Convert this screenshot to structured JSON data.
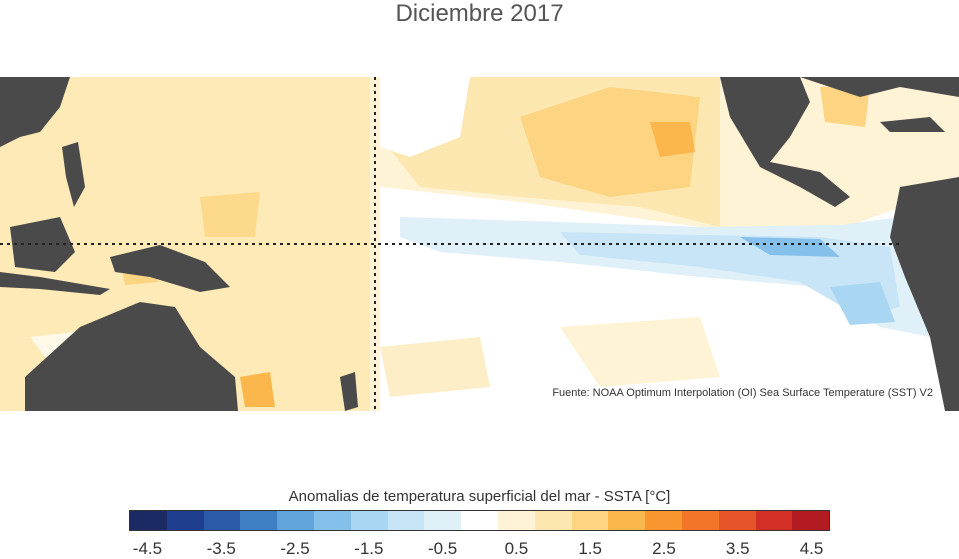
{
  "title": "Diciembre 2017",
  "source": "Fuente: NOAA Optimum Interpolation (OI) Sea Surface Temperature (SST) V2",
  "colorbar": {
    "label": "Anomalias de temperatura superficial del mar - SSTA  [°C]",
    "ticks": [
      "-4.5",
      "-3.5",
      "-2.5",
      "-1.5",
      "-0.5",
      "0.5",
      "1.5",
      "2.5",
      "3.5",
      "4.5"
    ],
    "colors": [
      "#1b2a63",
      "#1f3f8e",
      "#2a5aa8",
      "#3e7fc4",
      "#5fa4da",
      "#84c0ea",
      "#a9d6f3",
      "#c7e5f6",
      "#dff0f9",
      "#ffffff",
      "#fef3d5",
      "#fde7b0",
      "#fcd482",
      "#fbb64c",
      "#f99630",
      "#f2752a",
      "#e6542a",
      "#d42f26",
      "#b31b22"
    ]
  },
  "map": {
    "land_color": "#4a4a4a",
    "ocean_neutral_color": "#ffffff",
    "lines": [
      "equator",
      "date-line-180"
    ]
  }
}
